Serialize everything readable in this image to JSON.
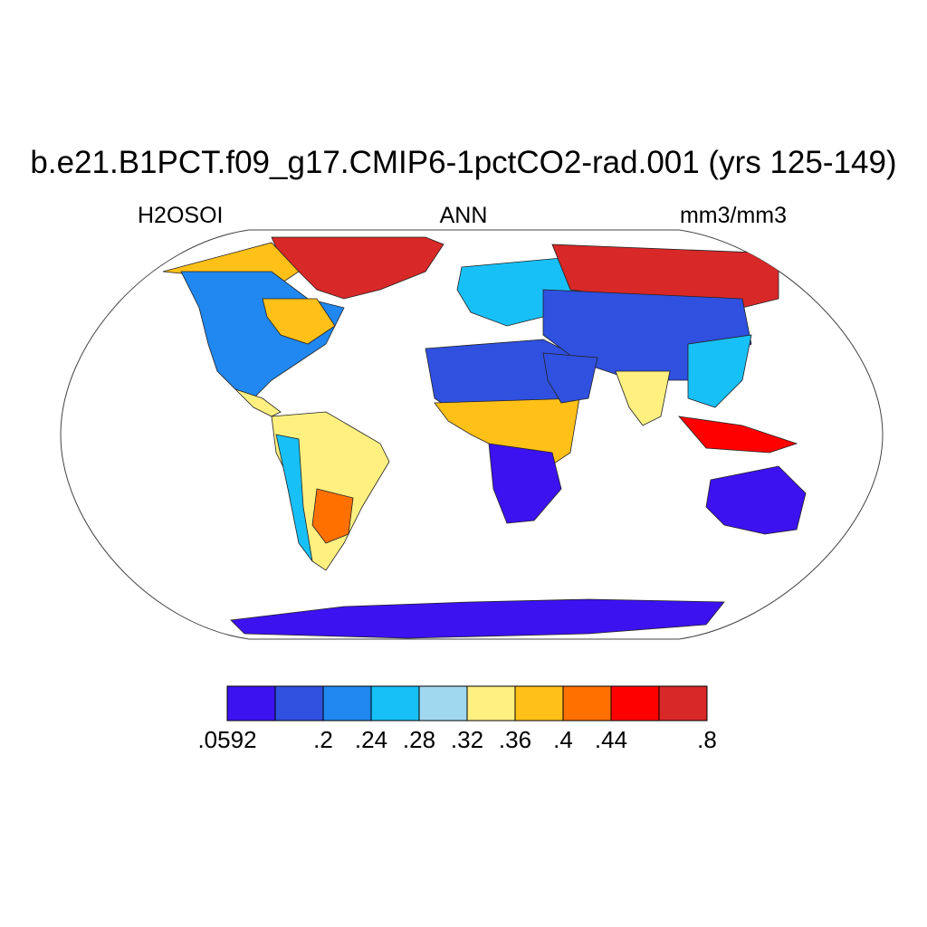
{
  "title": "b.e21.B1PCT.f09_g17.CMIP6-1pctCO2-rad.001 (yrs 125-149)",
  "left_label": "H2OSOI",
  "center_label": "ANN",
  "right_label": "mm3/mm3",
  "colorbar": {
    "colors": [
      "#3c12f0",
      "#3050e0",
      "#2088f0",
      "#18c0f8",
      "#a0d8f0",
      "#fff080",
      "#ffc018",
      "#ff7000",
      "#ff0000",
      "#d82828"
    ],
    "tick_labels": [
      ".0592",
      ".2",
      ".24",
      ".28",
      ".32",
      ".36",
      ".4",
      ".44",
      ".8"
    ],
    "tick_boundary_index": [
      0,
      2,
      3,
      4,
      5,
      6,
      7,
      8,
      10
    ]
  }
}
